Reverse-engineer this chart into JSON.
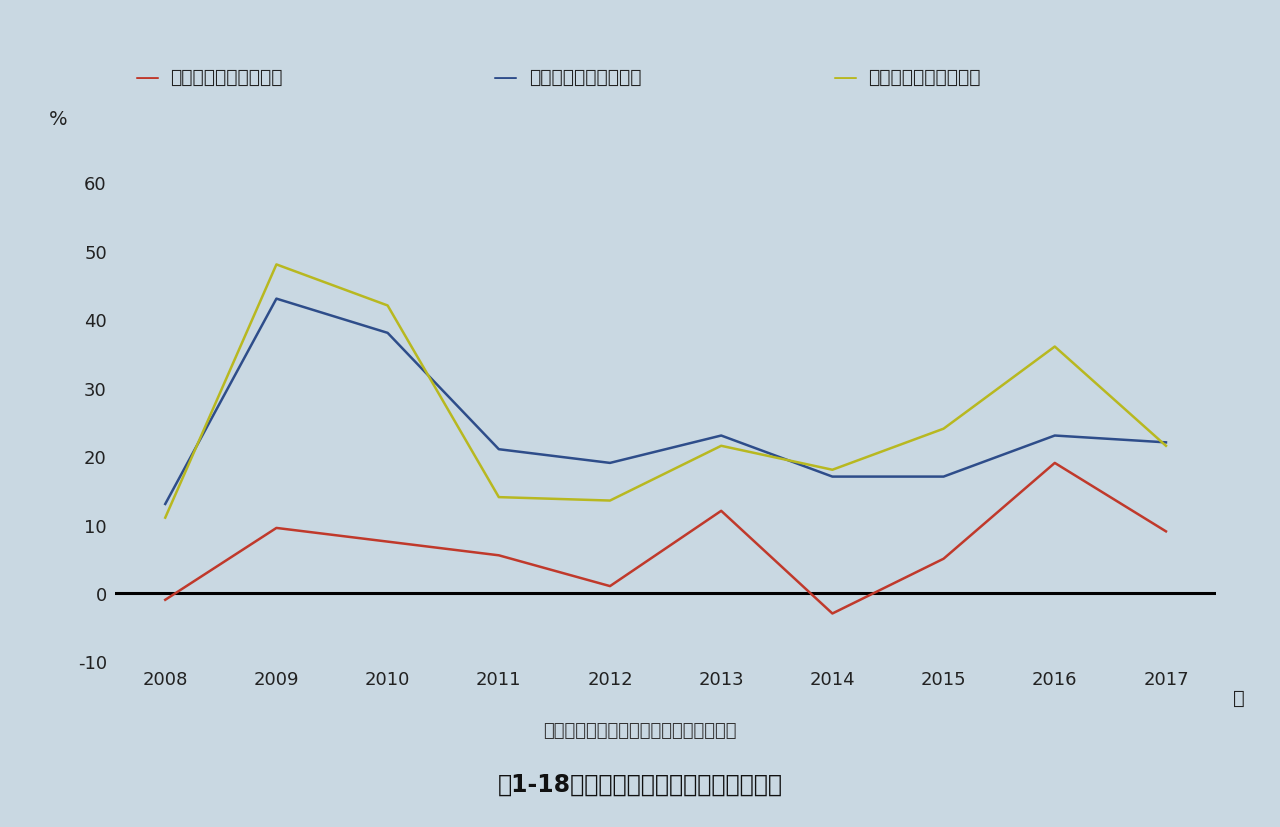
{
  "years": [
    2008,
    2009,
    2010,
    2011,
    2012,
    2013,
    2014,
    2015,
    2016,
    2017
  ],
  "housing_price_index": [
    -1,
    9.5,
    7.5,
    5.5,
    1,
    12,
    -3,
    5,
    19,
    9
  ],
  "household_debt": [
    13,
    43,
    38,
    21,
    19,
    23,
    17,
    17,
    23,
    22
  ],
  "personal_mortgage": [
    11,
    48,
    42,
    14,
    13.5,
    21.5,
    18,
    24,
    36,
    21.5
  ],
  "housing_price_color": "#c0392b",
  "household_debt_color": "#2e4d8a",
  "personal_mortgage_color": "#b8b820",
  "background_color": "#c9d8e2",
  "footer_color": "#dce6ec",
  "ylim": [
    -10,
    65
  ],
  "yticks": [
    -10,
    0,
    10,
    20,
    30,
    40,
    50,
    60
  ],
  "legend_labels": [
    "住房价格指数同比增速",
    "住户部门债务同比增速",
    "个人住房贷款同比增速"
  ],
  "ylabel": "%",
  "xlabel_unit": "年",
  "source_text": "数据来源：中国人民銀行、国家统计局。",
  "title": "图1-18　住户部门债务水平与房价的关系"
}
